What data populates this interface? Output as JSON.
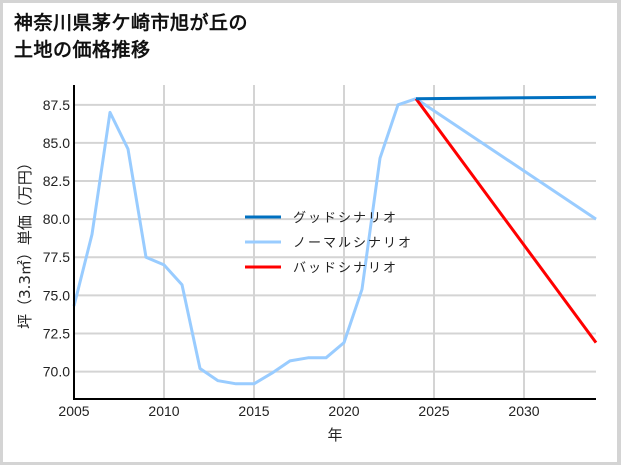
{
  "title_lines": [
    "神奈川県茅ケ崎市旭が丘の",
    "土地の価格推移"
  ],
  "chart_data": {
    "type": "line",
    "title": "神奈川県茅ケ崎市旭が丘の土地の価格推移",
    "xlabel": "年",
    "ylabel": "坪（3.3㎡）単価（万円）",
    "xlim": [
      2005,
      2034
    ],
    "ylim": [
      68.2,
      88.8
    ],
    "grid": true,
    "legend_position": "center-right",
    "xticks": [
      2005,
      2010,
      2015,
      2020,
      2025,
      2030
    ],
    "xtick_labels": [
      "2005",
      "2010",
      "2015",
      "2020",
      "2025",
      "2030"
    ],
    "yticks": [
      70.0,
      72.5,
      75.0,
      77.5,
      80.0,
      82.5,
      85.0,
      87.5
    ],
    "ytick_labels": [
      "70.0",
      "72.5",
      "75.0",
      "77.5",
      "80.0",
      "82.5",
      "85.0",
      "87.5"
    ],
    "series": [
      {
        "name": "グッドシナリオ",
        "color": "#0070c0",
        "x": [
          2024,
          2034
        ],
        "values": [
          87.9,
          88.0
        ]
      },
      {
        "name": "ノーマルシナリオ",
        "color": "#99ccff",
        "x": [
          2005,
          2006,
          2007,
          2008,
          2009,
          2010,
          2011,
          2012,
          2013,
          2014,
          2015,
          2016,
          2017,
          2018,
          2019,
          2020,
          2021,
          2022,
          2023,
          2024,
          2034
        ],
        "values": [
          74.3,
          79.0,
          87.0,
          84.6,
          77.5,
          77.0,
          75.7,
          70.2,
          69.4,
          69.2,
          69.2,
          69.9,
          70.7,
          70.9,
          70.9,
          71.9,
          75.4,
          84.0,
          87.5,
          87.9,
          80.0
        ]
      },
      {
        "name": "バッドシナリオ",
        "color": "#ff0000",
        "x": [
          2024,
          2034
        ],
        "values": [
          87.9,
          71.9
        ]
      }
    ]
  },
  "legend": {
    "items": [
      {
        "label": "グッドシナリオ",
        "color": "#0070c0"
      },
      {
        "label": "ノーマルシナリオ",
        "color": "#99ccff"
      },
      {
        "label": "バッドシナリオ",
        "color": "#ff0000"
      }
    ]
  },
  "colors": {
    "grid": "#d4d4d4",
    "axis": "#000000",
    "frame": "#d4d4d4"
  }
}
